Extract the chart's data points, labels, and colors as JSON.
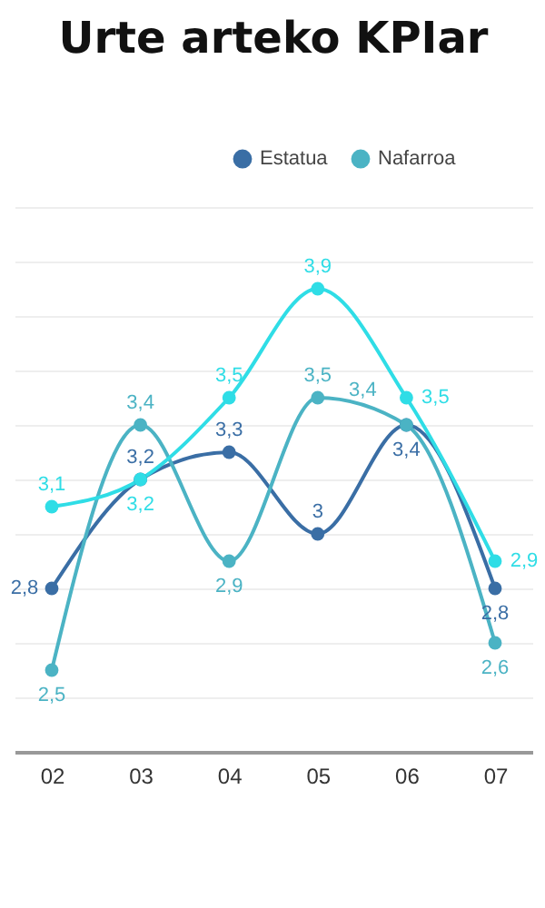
{
  "chart_data": {
    "type": "line",
    "title": "Urte arteko KPIar",
    "categories": [
      "02",
      "03",
      "04",
      "05",
      "06",
      "07"
    ],
    "series": [
      {
        "name": "Estatua",
        "color": "#3a6ea5",
        "values": [
          2.8,
          3.2,
          3.3,
          3,
          3.4,
          2.8
        ],
        "value_labels": [
          "2,8",
          "3,2",
          "3,3",
          "3",
          "3,4",
          "2,8"
        ]
      },
      {
        "name": "Nafarroa",
        "color": "#4bb3c4",
        "values": [
          2.5,
          3.4,
          2.9,
          3.5,
          3.4,
          2.6
        ],
        "value_labels": [
          "2,5",
          "3,4",
          "2,9",
          "3,5",
          "3,4",
          "2,6"
        ]
      },
      {
        "color": "#2fdde6",
        "values": [
          3.1,
          3.2,
          3.5,
          3.9,
          3.5,
          2.9
        ],
        "value_labels": [
          "3,1",
          "3,2",
          "3,5",
          "3,9",
          "3,5",
          "2,9"
        ]
      }
    ],
    "grid": "y",
    "tick_labels": "x",
    "legend": "top right",
    "marker": "circle"
  }
}
